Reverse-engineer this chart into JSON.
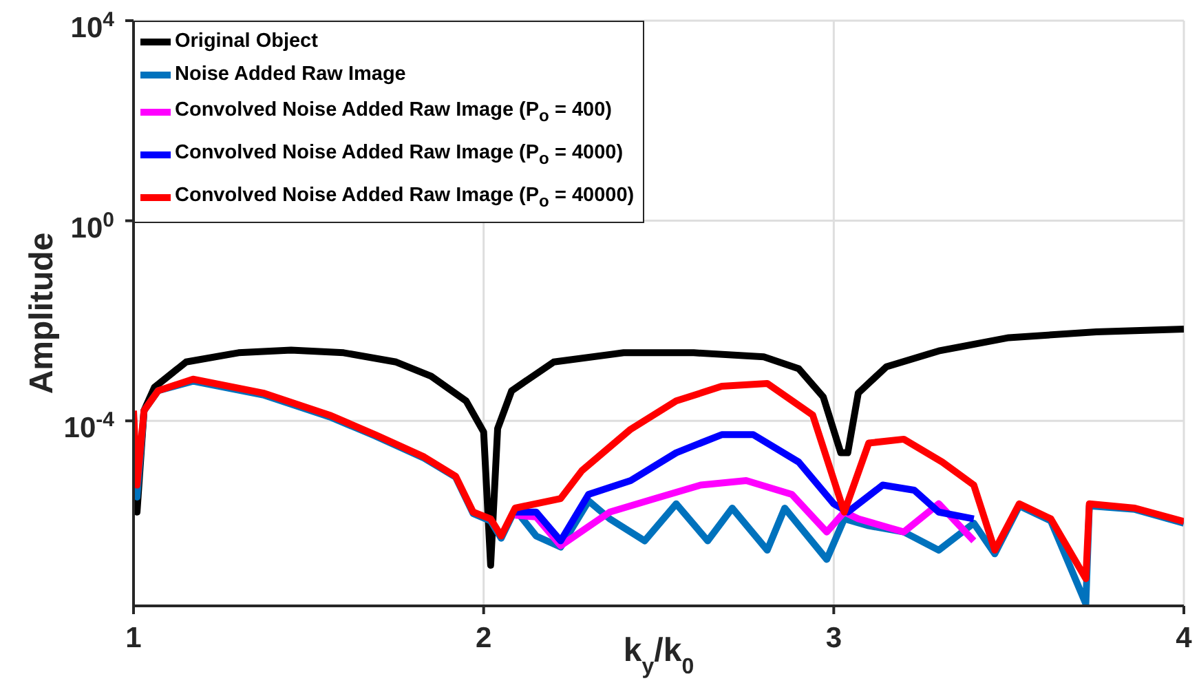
{
  "chart_data": {
    "type": "line",
    "xlabel": "k$_{y}$/k$_{0}$",
    "ylabel": "Amplitude",
    "log": "y",
    "grid": true,
    "legend": "top left",
    "marker": "none",
    "line_style": "solid",
    "xlim": [
      1,
      4
    ],
    "xticks": [
      1,
      2,
      3,
      4
    ],
    "ylim": [
      2e-08,
      10000
    ],
    "yticks": [
      {
        "value": 0.0001,
        "label": "10$^{-4}$"
      },
      {
        "value": 1,
        "label": "10$^{0}$"
      },
      {
        "value": 10000,
        "label": "10$^{4}$"
      }
    ],
    "series": [
      {
        "name": "Original Object",
        "color": "#000000",
        "x": [
          1,
          1.01,
          1.03,
          1.06,
          1.15,
          1.3,
          1.45,
          1.6,
          1.75,
          1.85,
          1.95,
          2,
          2.02,
          2.04,
          2.08,
          2.2,
          2.4,
          2.6,
          2.8,
          2.9,
          2.97,
          3.02,
          3.04,
          3.07,
          3.15,
          3.3,
          3.5,
          3.75,
          4
        ],
        "values": [
          0.0001,
          1.5e-06,
          0.00016,
          0.00047,
          0.0015,
          0.0023,
          0.0026,
          0.0023,
          0.0015,
          0.00078,
          0.00025,
          6e-05,
          1.3e-07,
          7e-05,
          0.0004,
          0.0015,
          0.0023,
          0.0023,
          0.0019,
          0.0011,
          0.0003,
          2.3e-05,
          2.3e-05,
          0.00036,
          0.0012,
          0.0025,
          0.0046,
          0.006,
          0.0068
        ]
      },
      {
        "name": "Noise Added Raw Image",
        "color": "#0072bd",
        "x": [
          1,
          1.01,
          1.03,
          1.07,
          1.17,
          1.37,
          1.56,
          1.69,
          1.83,
          1.92,
          1.97,
          2.02,
          2.05,
          2.09,
          2.15,
          2.22,
          2.3,
          2.36,
          2.46,
          2.55,
          2.64,
          2.71,
          2.81,
          2.86,
          2.98,
          3.03,
          3.1,
          3.2,
          3.3,
          3.4,
          3.46,
          3.53,
          3.62,
          3.72,
          3.73,
          3.86,
          4
        ],
        "values": [
          0.00012,
          3e-06,
          0.00016,
          0.0004,
          0.00062,
          0.00033,
          0.00012,
          5e-05,
          1.8e-05,
          7.5e-06,
          1.4e-06,
          1e-06,
          4.5e-07,
          1.7e-06,
          5e-07,
          3e-07,
          2.5e-06,
          1.1e-06,
          4e-07,
          2.2e-06,
          4e-07,
          1.8e-06,
          2.6e-07,
          1.8e-06,
          1.7e-07,
          1.1e-06,
          8e-07,
          6e-07,
          2.6e-07,
          9e-07,
          2.2e-07,
          2e-06,
          1e-06,
          2.2e-08,
          2e-06,
          1.7e-06,
          9e-07
        ]
      },
      {
        "name": "Convolved Noise Added Raw Image (P$_{o}$ = 400)",
        "color": "#ff00ff",
        "x": [
          2.09,
          2.15,
          2.22,
          2.36,
          2.49,
          2.62,
          2.75,
          2.88,
          2.98,
          3.03,
          3.07,
          3.2,
          3.3,
          3.4
        ],
        "values": [
          1.3e-06,
          1.2e-06,
          3.2e-07,
          1.5e-06,
          2.8e-06,
          5.2e-06,
          6.4e-06,
          3.4e-06,
          6e-07,
          1.5e-06,
          1.1e-06,
          6e-07,
          2.2e-06,
          4e-07
        ]
      },
      {
        "name": "Convolved Noise Added Raw Image (P$_{o}$ = 4000)",
        "color": "#0000ff",
        "x": [
          2.09,
          2.15,
          2.22,
          2.3,
          2.42,
          2.55,
          2.68,
          2.77,
          2.9,
          3,
          3.04,
          3.14,
          3.23,
          3.3,
          3.4
        ],
        "values": [
          1.5e-06,
          1.5e-06,
          4e-07,
          3.4e-06,
          6.4e-06,
          2.3e-05,
          5.3e-05,
          5.3e-05,
          1.5e-05,
          2.2e-06,
          1.5e-06,
          5.2e-06,
          4.1e-06,
          1.5e-06,
          1.1e-06
        ]
      },
      {
        "name": "Convolved Noise Added Raw Image (P$_{o}$ = 40000)",
        "color": "#ff0000",
        "x": [
          1,
          1.01,
          1.03,
          1.07,
          1.17,
          1.37,
          1.56,
          1.69,
          1.83,
          1.92,
          1.97,
          2.02,
          2.05,
          2.09,
          2.22,
          2.28,
          2.42,
          2.55,
          2.68,
          2.81,
          2.94,
          3.03,
          3.1,
          3.2,
          3.31,
          3.4,
          3.46,
          3.53,
          3.62,
          3.72,
          3.73,
          3.86,
          4
        ],
        "values": [
          0.00016,
          5.2e-06,
          0.00016,
          0.0004,
          0.00068,
          0.00036,
          0.00013,
          5.3e-05,
          1.9e-05,
          7.8e-06,
          1.5e-06,
          1.1e-06,
          5e-07,
          1.8e-06,
          2.8e-06,
          1e-05,
          6.8e-05,
          0.00025,
          0.00049,
          0.00056,
          0.00013,
          1.5e-06,
          3.6e-05,
          4.3e-05,
          1.5e-05,
          5.2e-06,
          2.6e-07,
          2.2e-06,
          1.1e-06,
          7e-08,
          2.2e-06,
          1.8e-06,
          9.7e-07
        ]
      }
    ]
  }
}
